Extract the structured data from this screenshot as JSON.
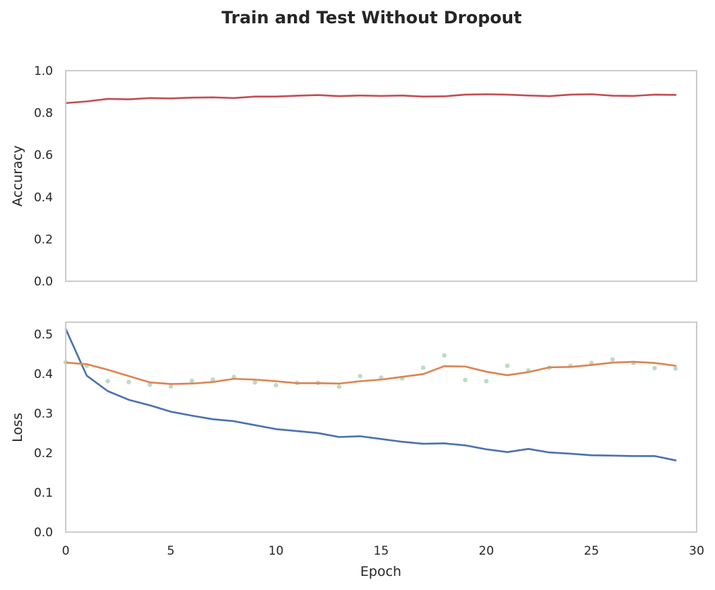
{
  "figure": {
    "title": "Train and Test Without Dropout"
  },
  "chart_data": [
    {
      "type": "line",
      "ylabel": "Accuracy",
      "xlabel": "",
      "xlim": [
        0,
        30
      ],
      "ylim": [
        0,
        1.0
      ],
      "yticks": [
        0.0,
        0.2,
        0.4,
        0.6,
        0.8,
        1.0
      ],
      "ytick_labels": [
        "0.0",
        "0.2",
        "0.4",
        "0.6",
        "0.8",
        "1.0"
      ],
      "show_xtick_labels": false,
      "grid": false,
      "x": [
        0,
        1,
        2,
        3,
        4,
        5,
        6,
        7,
        8,
        9,
        10,
        11,
        12,
        13,
        14,
        15,
        16,
        17,
        18,
        19,
        20,
        21,
        22,
        23,
        24,
        25,
        26,
        27,
        28,
        29
      ],
      "series": [
        {
          "color": "#c44e52",
          "style": "line",
          "values": [
            0.846,
            0.854,
            0.866,
            0.864,
            0.87,
            0.868,
            0.872,
            0.873,
            0.87,
            0.877,
            0.877,
            0.881,
            0.884,
            0.879,
            0.882,
            0.88,
            0.882,
            0.877,
            0.878,
            0.886,
            0.888,
            0.886,
            0.882,
            0.879,
            0.886,
            0.888,
            0.881,
            0.88,
            0.886,
            0.885
          ]
        }
      ]
    },
    {
      "type": "line",
      "ylabel": "Loss",
      "xlabel": "Epoch",
      "xlim": [
        0,
        30
      ],
      "ylim": [
        0,
        0.53
      ],
      "yticks": [
        0.0,
        0.1,
        0.2,
        0.3,
        0.4,
        0.5
      ],
      "ytick_labels": [
        "0.0",
        "0.1",
        "0.2",
        "0.3",
        "0.4",
        "0.5"
      ],
      "xticks": [
        0,
        5,
        10,
        15,
        20,
        25,
        30
      ],
      "xtick_labels": [
        "0",
        "5",
        "10",
        "15",
        "20",
        "25",
        "30"
      ],
      "grid": false,
      "x": [
        0,
        1,
        2,
        3,
        4,
        5,
        6,
        7,
        8,
        9,
        10,
        11,
        12,
        13,
        14,
        15,
        16,
        17,
        18,
        19,
        20,
        21,
        22,
        23,
        24,
        25,
        26,
        27,
        28,
        29
      ],
      "series": [
        {
          "color": "#4c72b0",
          "style": "line",
          "values": [
            0.513,
            0.395,
            0.356,
            0.334,
            0.32,
            0.304,
            0.294,
            0.285,
            0.28,
            0.27,
            0.26,
            0.255,
            0.25,
            0.24,
            0.242,
            0.235,
            0.228,
            0.223,
            0.224,
            0.219,
            0.209,
            0.202,
            0.21,
            0.201,
            0.198,
            0.194,
            0.193,
            0.192,
            0.192,
            0.181
          ]
        },
        {
          "color": "#55a868",
          "style": "points",
          "values": [
            0.429,
            0.42,
            0.381,
            0.379,
            0.372,
            0.368,
            0.382,
            0.385,
            0.392,
            0.378,
            0.371,
            0.377,
            0.377,
            0.367,
            0.394,
            0.39,
            0.388,
            0.415,
            0.446,
            0.384,
            0.381,
            0.42,
            0.408,
            0.415,
            0.42,
            0.427,
            0.436,
            0.427,
            0.414,
            0.413
          ]
        },
        {
          "color": "#dd8452",
          "style": "line",
          "values": [
            0.428,
            0.424,
            0.41,
            0.394,
            0.378,
            0.374,
            0.375,
            0.379,
            0.387,
            0.385,
            0.381,
            0.376,
            0.376,
            0.375,
            0.381,
            0.385,
            0.392,
            0.399,
            0.419,
            0.418,
            0.405,
            0.396,
            0.404,
            0.416,
            0.417,
            0.422,
            0.428,
            0.43,
            0.427,
            0.42
          ]
        }
      ]
    }
  ]
}
